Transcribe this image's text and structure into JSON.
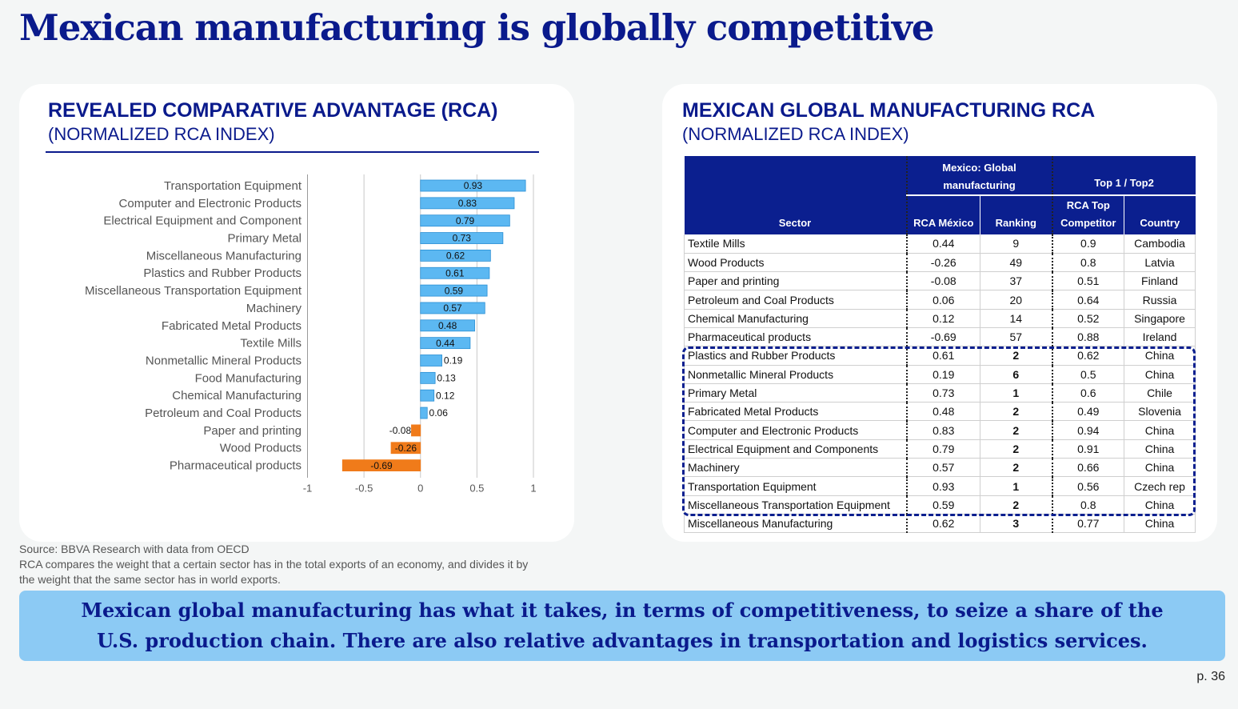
{
  "title": "Mexican manufacturing is globally competitive",
  "chart_data": {
    "type": "bar",
    "orientation": "horizontal",
    "title": "REVEALED COMPARATIVE ADVANTAGE (RCA)",
    "subtitle": "(NORMALIZED RCA INDEX)",
    "categories": [
      "Transportation Equipment",
      "Computer and Electronic Products",
      "Electrical Equipment and Component",
      "Primary Metal",
      "Miscellaneous Manufacturing",
      "Plastics and Rubber Products",
      "Miscellaneous Transportation Equipment",
      "Machinery",
      "Fabricated Metal Products",
      "Textile Mills",
      "Nonmetallic Mineral Products",
      "Food Manufacturing",
      "Chemical Manufacturing",
      "Petroleum and Coal Products",
      "Paper and printing",
      "Wood Products",
      "Pharmaceutical products"
    ],
    "values": [
      0.93,
      0.83,
      0.79,
      0.73,
      0.62,
      0.61,
      0.59,
      0.57,
      0.48,
      0.44,
      0.19,
      0.13,
      0.12,
      0.06,
      -0.08,
      -0.26,
      -0.69
    ],
    "color": "#5cb8f2",
    "negative_color": "#f07b1a",
    "xlim": [
      -1,
      1
    ],
    "xticks": [
      -1,
      -0.5,
      0,
      0.5,
      1
    ],
    "grid": true
  },
  "table": {
    "title": "MEXICAN GLOBAL MANUFACTURING RCA",
    "subtitle": "(NORMALIZED RCA INDEX)",
    "header_groups": [
      "Mexico: Global manufacturing",
      "Top 1 / Top2"
    ],
    "columns": [
      "Sector",
      "RCA México",
      "Ranking",
      "RCA Top Competitor",
      "Country"
    ],
    "rows": [
      [
        "Textile Mills",
        "0.44",
        "9",
        "0.9",
        "Cambodia"
      ],
      [
        "Wood Products",
        "-0.26",
        "49",
        "0.8",
        "Latvia"
      ],
      [
        "Paper and printing",
        "-0.08",
        "37",
        "0.51",
        "Finland"
      ],
      [
        "Petroleum and Coal Products",
        "0.06",
        "20",
        "0.64",
        "Russia"
      ],
      [
        "Chemical Manufacturing",
        "0.12",
        "14",
        "0.52",
        "Singapore"
      ],
      [
        "Pharmaceutical products",
        "-0.69",
        "57",
        "0.88",
        "Ireland"
      ],
      [
        "Plastics and Rubber Products",
        "0.61",
        "2",
        "0.62",
        "China"
      ],
      [
        "Nonmetallic Mineral Products",
        "0.19",
        "6",
        "0.5",
        "China"
      ],
      [
        "Primary Metal",
        "0.73",
        "1",
        "0.6",
        "Chile"
      ],
      [
        "Fabricated Metal Products",
        "0.48",
        "2",
        "0.49",
        "Slovenia"
      ],
      [
        "Computer and Electronic Products",
        "0.83",
        "2",
        "0.94",
        "China"
      ],
      [
        "Electrical Equipment and Components",
        "0.79",
        "2",
        "0.91",
        "China"
      ],
      [
        "Machinery",
        "0.57",
        "2",
        "0.66",
        "China"
      ],
      [
        "Transportation Equipment",
        "0.93",
        "1",
        "0.56",
        "Czech rep"
      ],
      [
        "Miscellaneous Transportation Equipment",
        "0.59",
        "2",
        "0.8",
        "China"
      ],
      [
        "Miscellaneous Manufacturing",
        "0.62",
        "3",
        "0.77",
        "China"
      ]
    ]
  },
  "notes": [
    "Source: BBVA Research with data from OECD",
    "RCA compares the weight that a certain sector has in the total exports of an economy, and divides it by",
    "the weight that the same sector has in world exports."
  ],
  "callout": [
    "Mexican global manufacturing has what it takes, in terms of competitiveness, to seize a share of the",
    "U.S. production chain. There are also relative advantages in transportation and logistics services."
  ],
  "page": "p. 36"
}
